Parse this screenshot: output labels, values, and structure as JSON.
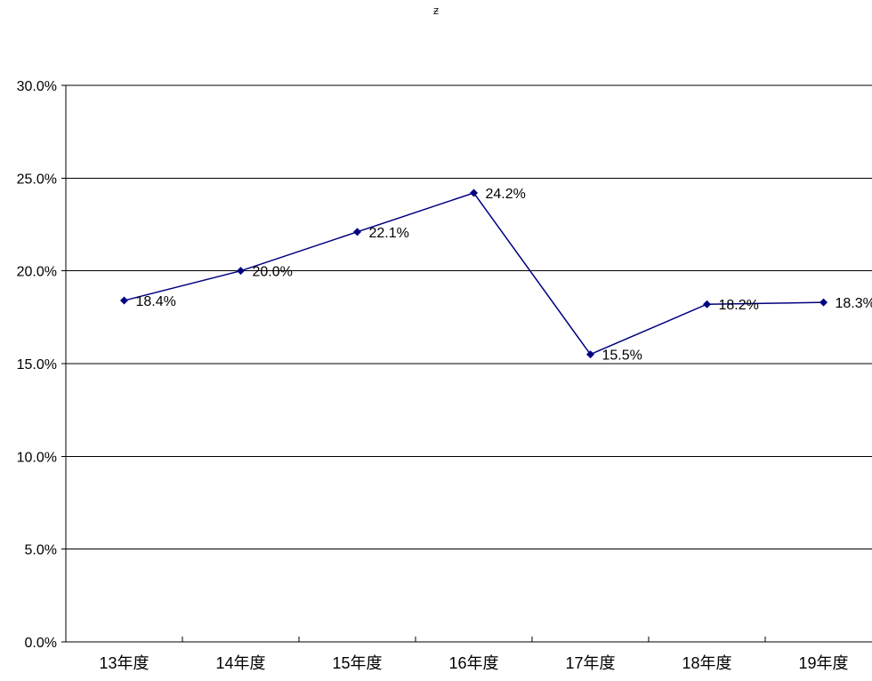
{
  "chart_data": {
    "type": "line",
    "title": "Ƶ",
    "xlabel": "",
    "ylabel": "",
    "categories": [
      "13年度",
      "14年度",
      "15年度",
      "16年度",
      "17年度",
      "18年度",
      "19年度"
    ],
    "series": [
      {
        "values": [
          18.4,
          20.0,
          22.1,
          24.2,
          15.5,
          18.2,
          18.3
        ],
        "labels": [
          "18.4%",
          "20.0%",
          "22.1%",
          "24.2%",
          "15.5%",
          "18.2%",
          "18.3%"
        ],
        "color": "#000080"
      }
    ],
    "ylim": [
      0,
      30
    ],
    "yticks": [
      0,
      5,
      10,
      15,
      20,
      25,
      30
    ],
    "ytick_labels": [
      "0.0%",
      "5.0%",
      "10.0%",
      "15.0%",
      "20.0%",
      "25.0%",
      "30.0%"
    ],
    "grid": true,
    "legend": "none"
  }
}
